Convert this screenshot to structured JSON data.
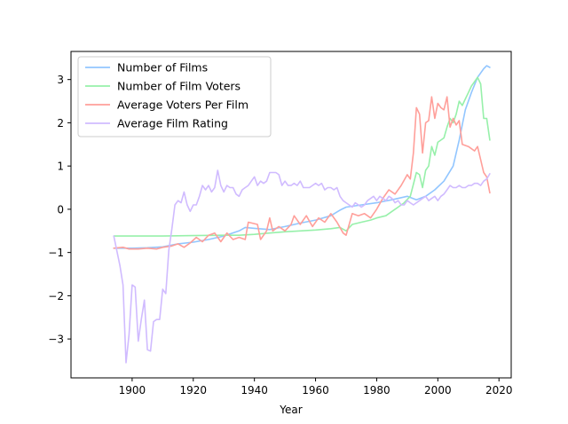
{
  "chart_data": {
    "type": "line",
    "xlabel": "Year",
    "ylabel": "",
    "xlim": [
      1880,
      2024
    ],
    "ylim": [
      -3.9,
      3.65
    ],
    "xticks": [
      1900,
      1920,
      1940,
      1960,
      1980,
      2000,
      2020
    ],
    "yticks": [
      -3,
      -2,
      -1,
      0,
      1,
      2,
      3
    ],
    "grid": false,
    "legend_position": "top-left",
    "series": [
      {
        "name": "Number of Films",
        "color": "#92c6ff",
        "points": [
          [
            1894,
            -0.9
          ],
          [
            1900,
            -0.9
          ],
          [
            1905,
            -0.89
          ],
          [
            1910,
            -0.87
          ],
          [
            1915,
            -0.8
          ],
          [
            1920,
            -0.76
          ],
          [
            1925,
            -0.7
          ],
          [
            1930,
            -0.62
          ],
          [
            1935,
            -0.5
          ],
          [
            1937,
            -0.42
          ],
          [
            1940,
            -0.44
          ],
          [
            1945,
            -0.47
          ],
          [
            1950,
            -0.4
          ],
          [
            1955,
            -0.32
          ],
          [
            1960,
            -0.25
          ],
          [
            1965,
            -0.15
          ],
          [
            1968,
            -0.02
          ],
          [
            1970,
            0.05
          ],
          [
            1975,
            0.1
          ],
          [
            1980,
            0.15
          ],
          [
            1985,
            0.22
          ],
          [
            1990,
            0.3
          ],
          [
            1993,
            0.22
          ],
          [
            1996,
            0.3
          ],
          [
            1999,
            0.45
          ],
          [
            2002,
            0.65
          ],
          [
            2005,
            1.0
          ],
          [
            2007,
            1.6
          ],
          [
            2009,
            2.3
          ],
          [
            2011,
            2.7
          ],
          [
            2013,
            3.05
          ],
          [
            2015,
            3.25
          ],
          [
            2016,
            3.32
          ],
          [
            2017,
            3.28
          ]
        ]
      },
      {
        "name": "Number of Film Voters",
        "color": "#97f0aa",
        "points": [
          [
            1894,
            -0.62
          ],
          [
            1900,
            -0.62
          ],
          [
            1910,
            -0.62
          ],
          [
            1920,
            -0.61
          ],
          [
            1930,
            -0.6
          ],
          [
            1935,
            -0.6
          ],
          [
            1940,
            -0.58
          ],
          [
            1945,
            -0.55
          ],
          [
            1950,
            -0.52
          ],
          [
            1955,
            -0.5
          ],
          [
            1960,
            -0.48
          ],
          [
            1965,
            -0.45
          ],
          [
            1968,
            -0.42
          ],
          [
            1970,
            -0.5
          ],
          [
            1972,
            -0.35
          ],
          [
            1975,
            -0.3
          ],
          [
            1978,
            -0.25
          ],
          [
            1980,
            -0.2
          ],
          [
            1983,
            -0.15
          ],
          [
            1985,
            -0.05
          ],
          [
            1987,
            0.05
          ],
          [
            1989,
            0.15
          ],
          [
            1991,
            0.3
          ],
          [
            1993,
            0.85
          ],
          [
            1994,
            0.8
          ],
          [
            1995,
            0.5
          ],
          [
            1996,
            0.9
          ],
          [
            1997,
            1.0
          ],
          [
            1998,
            1.45
          ],
          [
            1999,
            1.25
          ],
          [
            2000,
            1.55
          ],
          [
            2002,
            1.65
          ],
          [
            2003,
            1.9
          ],
          [
            2004,
            2.1
          ],
          [
            2005,
            2.0
          ],
          [
            2006,
            2.2
          ],
          [
            2007,
            2.5
          ],
          [
            2008,
            2.4
          ],
          [
            2009,
            2.55
          ],
          [
            2010,
            2.7
          ],
          [
            2011,
            2.85
          ],
          [
            2012,
            2.95
          ],
          [
            2013,
            3.05
          ],
          [
            2014,
            2.9
          ],
          [
            2015,
            2.1
          ],
          [
            2016,
            2.1
          ],
          [
            2017,
            1.6
          ]
        ]
      },
      {
        "name": "Average Voters Per Film",
        "color": "#ff9f9a",
        "points": [
          [
            1894,
            -0.9
          ],
          [
            1897,
            -0.88
          ],
          [
            1899,
            -0.92
          ],
          [
            1902,
            -0.92
          ],
          [
            1905,
            -0.9
          ],
          [
            1908,
            -0.92
          ],
          [
            1910,
            -0.88
          ],
          [
            1913,
            -0.85
          ],
          [
            1915,
            -0.8
          ],
          [
            1917,
            -0.88
          ],
          [
            1919,
            -0.78
          ],
          [
            1921,
            -0.65
          ],
          [
            1923,
            -0.75
          ],
          [
            1925,
            -0.6
          ],
          [
            1927,
            -0.55
          ],
          [
            1929,
            -0.75
          ],
          [
            1931,
            -0.55
          ],
          [
            1933,
            -0.7
          ],
          [
            1935,
            -0.65
          ],
          [
            1937,
            -0.7
          ],
          [
            1938,
            -0.3
          ],
          [
            1941,
            -0.35
          ],
          [
            1942,
            -0.7
          ],
          [
            1944,
            -0.5
          ],
          [
            1945,
            -0.2
          ],
          [
            1946,
            -0.5
          ],
          [
            1948,
            -0.4
          ],
          [
            1950,
            -0.5
          ],
          [
            1952,
            -0.35
          ],
          [
            1953,
            -0.15
          ],
          [
            1955,
            -0.35
          ],
          [
            1957,
            -0.15
          ],
          [
            1959,
            -0.4
          ],
          [
            1961,
            -0.2
          ],
          [
            1963,
            -0.3
          ],
          [
            1965,
            -0.1
          ],
          [
            1967,
            -0.3
          ],
          [
            1969,
            -0.55
          ],
          [
            1970,
            -0.6
          ],
          [
            1972,
            -0.1
          ],
          [
            1974,
            -0.15
          ],
          [
            1976,
            -0.1
          ],
          [
            1978,
            -0.2
          ],
          [
            1980,
            0.0
          ],
          [
            1982,
            0.25
          ],
          [
            1984,
            0.45
          ],
          [
            1986,
            0.35
          ],
          [
            1988,
            0.55
          ],
          [
            1990,
            0.8
          ],
          [
            1991,
            0.7
          ],
          [
            1992,
            1.3
          ],
          [
            1993,
            2.35
          ],
          [
            1994,
            2.2
          ],
          [
            1995,
            1.3
          ],
          [
            1996,
            2.0
          ],
          [
            1997,
            2.05
          ],
          [
            1998,
            2.6
          ],
          [
            1999,
            2.1
          ],
          [
            2000,
            2.45
          ],
          [
            2001,
            2.35
          ],
          [
            2002,
            2.3
          ],
          [
            2003,
            2.6
          ],
          [
            2004,
            1.9
          ],
          [
            2005,
            2.1
          ],
          [
            2006,
            1.95
          ],
          [
            2007,
            2.05
          ],
          [
            2008,
            1.5
          ],
          [
            2010,
            1.45
          ],
          [
            2012,
            1.35
          ],
          [
            2013,
            1.45
          ],
          [
            2015,
            0.85
          ],
          [
            2016,
            0.75
          ],
          [
            2017,
            0.38
          ]
        ]
      },
      {
        "name": "Average Film Rating",
        "color": "#d0bbff",
        "points": [
          [
            1894,
            -0.62
          ],
          [
            1896,
            -1.3
          ],
          [
            1897,
            -1.75
          ],
          [
            1898,
            -3.55
          ],
          [
            1899,
            -2.9
          ],
          [
            1900,
            -1.75
          ],
          [
            1901,
            -1.8
          ],
          [
            1902,
            -3.05
          ],
          [
            1903,
            -2.55
          ],
          [
            1904,
            -2.1
          ],
          [
            1905,
            -3.25
          ],
          [
            1906,
            -3.28
          ],
          [
            1907,
            -2.6
          ],
          [
            1908,
            -2.55
          ],
          [
            1909,
            -2.55
          ],
          [
            1910,
            -1.85
          ],
          [
            1911,
            -1.95
          ],
          [
            1912,
            -0.95
          ],
          [
            1913,
            -0.45
          ],
          [
            1914,
            0.1
          ],
          [
            1915,
            0.2
          ],
          [
            1916,
            0.15
          ],
          [
            1917,
            0.4
          ],
          [
            1918,
            0.1
          ],
          [
            1919,
            -0.05
          ],
          [
            1920,
            0.1
          ],
          [
            1921,
            0.1
          ],
          [
            1922,
            0.3
          ],
          [
            1923,
            0.55
          ],
          [
            1924,
            0.45
          ],
          [
            1925,
            0.55
          ],
          [
            1926,
            0.4
          ],
          [
            1927,
            0.5
          ],
          [
            1928,
            0.9
          ],
          [
            1929,
            0.55
          ],
          [
            1930,
            0.4
          ],
          [
            1931,
            0.55
          ],
          [
            1932,
            0.5
          ],
          [
            1933,
            0.5
          ],
          [
            1934,
            0.35
          ],
          [
            1935,
            0.3
          ],
          [
            1936,
            0.45
          ],
          [
            1937,
            0.5
          ],
          [
            1938,
            0.55
          ],
          [
            1939,
            0.65
          ],
          [
            1940,
            0.75
          ],
          [
            1941,
            0.55
          ],
          [
            1942,
            0.65
          ],
          [
            1943,
            0.6
          ],
          [
            1944,
            0.65
          ],
          [
            1945,
            0.85
          ],
          [
            1946,
            0.85
          ],
          [
            1947,
            0.85
          ],
          [
            1948,
            0.8
          ],
          [
            1949,
            0.55
          ],
          [
            1950,
            0.65
          ],
          [
            1951,
            0.55
          ],
          [
            1952,
            0.55
          ],
          [
            1953,
            0.6
          ],
          [
            1954,
            0.55
          ],
          [
            1955,
            0.65
          ],
          [
            1956,
            0.5
          ],
          [
            1957,
            0.5
          ],
          [
            1958,
            0.5
          ],
          [
            1959,
            0.55
          ],
          [
            1960,
            0.6
          ],
          [
            1961,
            0.55
          ],
          [
            1962,
            0.6
          ],
          [
            1963,
            0.45
          ],
          [
            1964,
            0.5
          ],
          [
            1965,
            0.5
          ],
          [
            1966,
            0.45
          ],
          [
            1967,
            0.5
          ],
          [
            1968,
            0.3
          ],
          [
            1969,
            0.2
          ],
          [
            1970,
            0.15
          ],
          [
            1971,
            0.1
          ],
          [
            1972,
            0.05
          ],
          [
            1973,
            0.15
          ],
          [
            1974,
            0.1
          ],
          [
            1975,
            0.05
          ],
          [
            1976,
            0.1
          ],
          [
            1977,
            0.2
          ],
          [
            1978,
            0.25
          ],
          [
            1979,
            0.3
          ],
          [
            1980,
            0.2
          ],
          [
            1981,
            0.3
          ],
          [
            1982,
            0.25
          ],
          [
            1983,
            0.2
          ],
          [
            1984,
            0.3
          ],
          [
            1985,
            0.25
          ],
          [
            1986,
            0.15
          ],
          [
            1987,
            0.2
          ],
          [
            1988,
            0.1
          ],
          [
            1989,
            0.1
          ],
          [
            1990,
            0.2
          ],
          [
            1991,
            0.15
          ],
          [
            1992,
            0.1
          ],
          [
            1993,
            0.15
          ],
          [
            1994,
            0.2
          ],
          [
            1995,
            0.25
          ],
          [
            1996,
            0.3
          ],
          [
            1997,
            0.2
          ],
          [
            1998,
            0.25
          ],
          [
            1999,
            0.3
          ],
          [
            2000,
            0.2
          ],
          [
            2001,
            0.3
          ],
          [
            2002,
            0.35
          ],
          [
            2003,
            0.45
          ],
          [
            2004,
            0.55
          ],
          [
            2005,
            0.5
          ],
          [
            2006,
            0.5
          ],
          [
            2007,
            0.55
          ],
          [
            2008,
            0.5
          ],
          [
            2009,
            0.5
          ],
          [
            2010,
            0.55
          ],
          [
            2011,
            0.55
          ],
          [
            2012,
            0.6
          ],
          [
            2013,
            0.6
          ],
          [
            2014,
            0.55
          ],
          [
            2015,
            0.65
          ],
          [
            2016,
            0.7
          ],
          [
            2017,
            0.82
          ]
        ]
      }
    ]
  }
}
